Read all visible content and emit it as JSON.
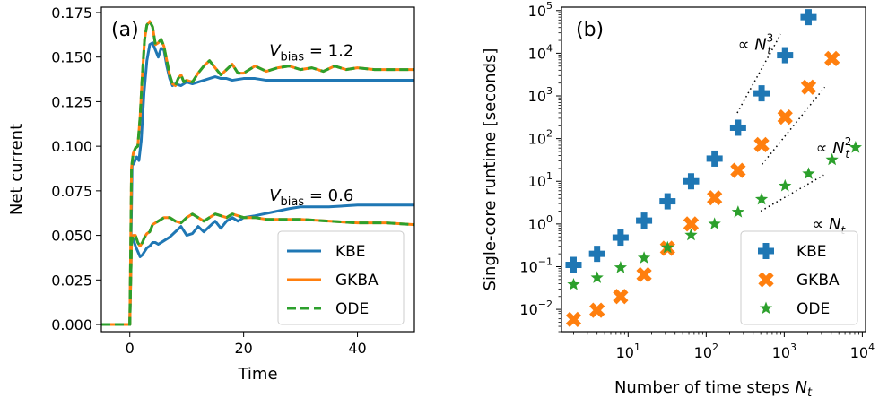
{
  "colors": {
    "KBE": "#1f77b4",
    "GKBA": "#ff7f0e",
    "ODE": "#2ca02c"
  },
  "chart_data": [
    {
      "type": "line",
      "panel_label": "(a)",
      "xlabel": "Time",
      "ylabel": "Net current",
      "xlim": [
        -5,
        50
      ],
      "ylim": [
        -0.004,
        0.178
      ],
      "x_ticks": [
        0,
        20,
        40
      ],
      "y_ticks": [
        0.0,
        0.025,
        0.05,
        0.075,
        0.1,
        0.125,
        0.15,
        0.175
      ],
      "x_tick_labels": [
        "0",
        "20",
        "40"
      ],
      "y_tick_labels": [
        "0.000",
        "0.025",
        "0.050",
        "0.075",
        "0.100",
        "0.125",
        "0.150",
        "0.175"
      ],
      "legend_position": "lower-right",
      "grid": false,
      "annotations": [
        {
          "text_main": "V",
          "text_sub": "bias",
          "text_rest": " = 1.2",
          "x": 24.5,
          "y": 0.1505
        },
        {
          "text_main": "V",
          "text_sub": "bias",
          "text_rest": " = 0.6",
          "x": 24.5,
          "y": 0.0695
        }
      ],
      "series": [
        {
          "name": "KBE",
          "style": "solid",
          "x": [
            -5,
            -3,
            -1,
            0,
            0.4,
            0.8,
            1.2,
            1.6,
            2.0,
            2.5,
            3.0,
            3.5,
            4.0,
            4.5,
            5.0,
            5.5,
            6.0,
            6.5,
            7.0,
            7.5,
            8.0,
            9.0,
            10.0,
            11.0,
            12.0,
            13.0,
            14.0,
            15.0,
            16.0,
            17.0,
            18.0,
            20.0,
            22.0,
            24.0,
            26.0,
            28.0,
            30.0,
            35.0,
            40.0,
            45.0,
            50.0
          ],
          "y": [
            0,
            0,
            0,
            0,
            0.089,
            0.091,
            0.094,
            0.092,
            0.103,
            0.13,
            0.148,
            0.157,
            0.158,
            0.154,
            0.15,
            0.155,
            0.154,
            0.145,
            0.138,
            0.134,
            0.135,
            0.134,
            0.136,
            0.135,
            0.136,
            0.137,
            0.138,
            0.139,
            0.138,
            0.138,
            0.137,
            0.138,
            0.138,
            0.137,
            0.137,
            0.137,
            0.137,
            0.137,
            0.137,
            0.137,
            0.137
          ]
        },
        {
          "name": "KBE",
          "style": "solid",
          "legend": false,
          "x": [
            -5,
            -3,
            -1,
            0,
            0.3,
            0.6,
            1.0,
            1.4,
            1.8,
            2.2,
            2.6,
            3.0,
            3.5,
            4.0,
            4.5,
            5.0,
            5.5,
            6.0,
            7.0,
            8.0,
            9.0,
            10.0,
            11.0,
            12.0,
            13.0,
            14.0,
            15.0,
            16.0,
            17.0,
            18.0,
            19.0,
            20.0,
            22.0,
            25.0,
            28.0,
            30.0,
            35.0,
            40.0,
            45.0,
            50.0
          ],
          "y": [
            0,
            0,
            0,
            0,
            0.046,
            0.048,
            0.044,
            0.041,
            0.038,
            0.039,
            0.041,
            0.043,
            0.044,
            0.046,
            0.046,
            0.045,
            0.046,
            0.047,
            0.049,
            0.052,
            0.055,
            0.05,
            0.051,
            0.055,
            0.052,
            0.055,
            0.058,
            0.054,
            0.058,
            0.06,
            0.058,
            0.06,
            0.061,
            0.063,
            0.065,
            0.066,
            0.066,
            0.067,
            0.067,
            0.067
          ]
        },
        {
          "name": "GKBA",
          "style": "solid",
          "x": [
            -5,
            -3,
            -1,
            0,
            0.3,
            0.6,
            1.0,
            1.4,
            1.8,
            2.2,
            2.6,
            3.0,
            3.5,
            4.0,
            4.5,
            5.0,
            5.5,
            6.0,
            6.5,
            7.0,
            7.5,
            8.0,
            8.5,
            9.0,
            9.5,
            10.0,
            11.0,
            12.0,
            13.0,
            14.0,
            15.0,
            16.0,
            17.0,
            18.0,
            19.0,
            20.0,
            21.0,
            22.0,
            24.0,
            26.0,
            28.0,
            30.0,
            32.0,
            34.0,
            36.0,
            38.0,
            40.0,
            43.0,
            46.0,
            50.0
          ],
          "y": [
            0,
            0,
            0,
            0,
            0.088,
            0.096,
            0.099,
            0.1,
            0.116,
            0.14,
            0.16,
            0.168,
            0.17,
            0.167,
            0.157,
            0.158,
            0.16,
            0.156,
            0.148,
            0.14,
            0.135,
            0.134,
            0.138,
            0.14,
            0.136,
            0.137,
            0.136,
            0.141,
            0.145,
            0.148,
            0.144,
            0.14,
            0.143,
            0.146,
            0.141,
            0.141,
            0.143,
            0.145,
            0.142,
            0.144,
            0.145,
            0.143,
            0.144,
            0.142,
            0.145,
            0.143,
            0.144,
            0.143,
            0.143,
            0.143
          ]
        },
        {
          "name": "GKBA",
          "style": "solid",
          "legend": false,
          "x": [
            -5,
            -3,
            -1,
            0,
            0.3,
            0.6,
            1.0,
            1.4,
            1.8,
            2.2,
            2.6,
            3.0,
            3.5,
            4.0,
            5.0,
            6.0,
            7.0,
            8.0,
            9.0,
            10.0,
            11.0,
            12.0,
            13.0,
            14.0,
            15.0,
            16.0,
            17.0,
            18.0,
            19.0,
            20.0,
            22.0,
            24.0,
            26.0,
            28.0,
            30.0,
            35.0,
            40.0,
            45.0,
            50.0
          ],
          "y": [
            0,
            0,
            0,
            0,
            0.046,
            0.05,
            0.05,
            0.046,
            0.044,
            0.046,
            0.049,
            0.051,
            0.052,
            0.056,
            0.058,
            0.06,
            0.06,
            0.058,
            0.057,
            0.06,
            0.062,
            0.06,
            0.058,
            0.06,
            0.062,
            0.061,
            0.06,
            0.062,
            0.061,
            0.06,
            0.06,
            0.059,
            0.059,
            0.059,
            0.059,
            0.058,
            0.057,
            0.057,
            0.056
          ]
        },
        {
          "name": "ODE",
          "style": "dashed",
          "x": [
            -5,
            -3,
            -1,
            0,
            0.3,
            0.6,
            1.0,
            1.4,
            1.8,
            2.2,
            2.6,
            3.0,
            3.5,
            4.0,
            4.5,
            5.0,
            5.5,
            6.0,
            6.5,
            7.0,
            7.5,
            8.0,
            8.5,
            9.0,
            9.5,
            10.0,
            11.0,
            12.0,
            13.0,
            14.0,
            15.0,
            16.0,
            17.0,
            18.0,
            19.0,
            20.0,
            21.0,
            22.0,
            24.0,
            26.0,
            28.0,
            30.0,
            32.0,
            34.0,
            36.0,
            38.0,
            40.0,
            43.0,
            46.0,
            50.0
          ],
          "y": [
            0,
            0,
            0,
            0,
            0.088,
            0.096,
            0.099,
            0.1,
            0.116,
            0.14,
            0.16,
            0.168,
            0.17,
            0.167,
            0.157,
            0.158,
            0.16,
            0.156,
            0.148,
            0.14,
            0.135,
            0.134,
            0.138,
            0.14,
            0.136,
            0.137,
            0.136,
            0.141,
            0.145,
            0.148,
            0.144,
            0.14,
            0.143,
            0.146,
            0.141,
            0.141,
            0.143,
            0.145,
            0.142,
            0.144,
            0.145,
            0.143,
            0.144,
            0.142,
            0.145,
            0.143,
            0.144,
            0.143,
            0.143,
            0.143
          ]
        },
        {
          "name": "ODE",
          "style": "dashed",
          "legend": false,
          "x": [
            -5,
            -3,
            -1,
            0,
            0.3,
            0.6,
            1.0,
            1.4,
            1.8,
            2.2,
            2.6,
            3.0,
            3.5,
            4.0,
            5.0,
            6.0,
            7.0,
            8.0,
            9.0,
            10.0,
            11.0,
            12.0,
            13.0,
            14.0,
            15.0,
            16.0,
            17.0,
            18.0,
            19.0,
            20.0,
            22.0,
            24.0,
            26.0,
            28.0,
            30.0,
            35.0,
            40.0,
            45.0,
            50.0
          ],
          "y": [
            0,
            0,
            0,
            0,
            0.046,
            0.05,
            0.05,
            0.046,
            0.044,
            0.046,
            0.049,
            0.051,
            0.052,
            0.056,
            0.058,
            0.06,
            0.06,
            0.058,
            0.057,
            0.06,
            0.062,
            0.06,
            0.058,
            0.06,
            0.062,
            0.061,
            0.06,
            0.062,
            0.061,
            0.06,
            0.06,
            0.059,
            0.059,
            0.059,
            0.059,
            0.058,
            0.057,
            0.057,
            0.056
          ]
        }
      ]
    },
    {
      "type": "scatter",
      "panel_label": "(b)",
      "xlabel_main": "Number of time steps ",
      "xlabel_var": "N",
      "xlabel_sub": "t",
      "ylabel": "Single-core runtime [seconds]",
      "x_scale": "log",
      "y_scale": "log",
      "xlim": [
        1.4,
        11000
      ],
      "ylim": [
        0.003,
        120000
      ],
      "x_ticks": [
        10,
        100,
        1000,
        10000
      ],
      "x_tick_bases": [
        "10",
        "10",
        "10",
        "10"
      ],
      "x_tick_exps": [
        "1",
        "2",
        "3",
        "4"
      ],
      "y_ticks": [
        0.01,
        0.1,
        1,
        10,
        100,
        1000,
        10000,
        100000
      ],
      "y_tick_bases": [
        "10",
        "10",
        "10",
        "10",
        "10",
        "10",
        "10",
        "10"
      ],
      "y_tick_exps": [
        "−2",
        "−1",
        "0",
        "1",
        "2",
        "3",
        "4",
        "5"
      ],
      "legend_position": "lower-right",
      "grid": false,
      "series": [
        {
          "name": "KBE",
          "marker": "plus",
          "x": [
            2,
            4,
            8,
            16,
            32,
            64,
            128,
            256,
            512,
            1024,
            2048
          ],
          "y": [
            0.11,
            0.2,
            0.48,
            1.2,
            3.4,
            10,
            34,
            180,
            1150,
            9000,
            70000
          ]
        },
        {
          "name": "GKBA",
          "marker": "x",
          "x": [
            2,
            4,
            8,
            16,
            32,
            64,
            128,
            256,
            512,
            1024,
            2048,
            4096
          ],
          "y": [
            0.0058,
            0.0095,
            0.02,
            0.065,
            0.27,
            1.0,
            4.1,
            18,
            72,
            320,
            1600,
            7500
          ]
        },
        {
          "name": "ODE",
          "marker": "star",
          "x": [
            2,
            4,
            8,
            16,
            32,
            64,
            128,
            256,
            512,
            1024,
            2048,
            4096,
            8192
          ],
          "y": [
            0.038,
            0.055,
            0.095,
            0.16,
            0.28,
            0.55,
            1.0,
            1.9,
            3.8,
            7.8,
            15,
            32,
            62
          ]
        }
      ],
      "guides": [
        {
          "label_pre": "∝ ",
          "label_var": "N",
          "label_sub": "t",
          "label_sup": "3",
          "x": [
            250,
            900
          ],
          "y": [
            400,
            28000
          ],
          "label_x": 430,
          "label_y": 12000
        },
        {
          "label_pre": "∝ ",
          "label_var": "N",
          "label_sub": "t",
          "label_sup": "2",
          "x": [
            520,
            3300
          ],
          "y": [
            25,
            1600
          ],
          "label_x": 4300,
          "label_y": 45
        },
        {
          "label_pre": "∝ ",
          "label_var": "N",
          "label_sub": "t",
          "label_sup": "",
          "x": [
            500,
            3200
          ],
          "y": [
            2,
            14
          ],
          "label_x": 3700,
          "label_y": 0.75
        }
      ]
    }
  ]
}
